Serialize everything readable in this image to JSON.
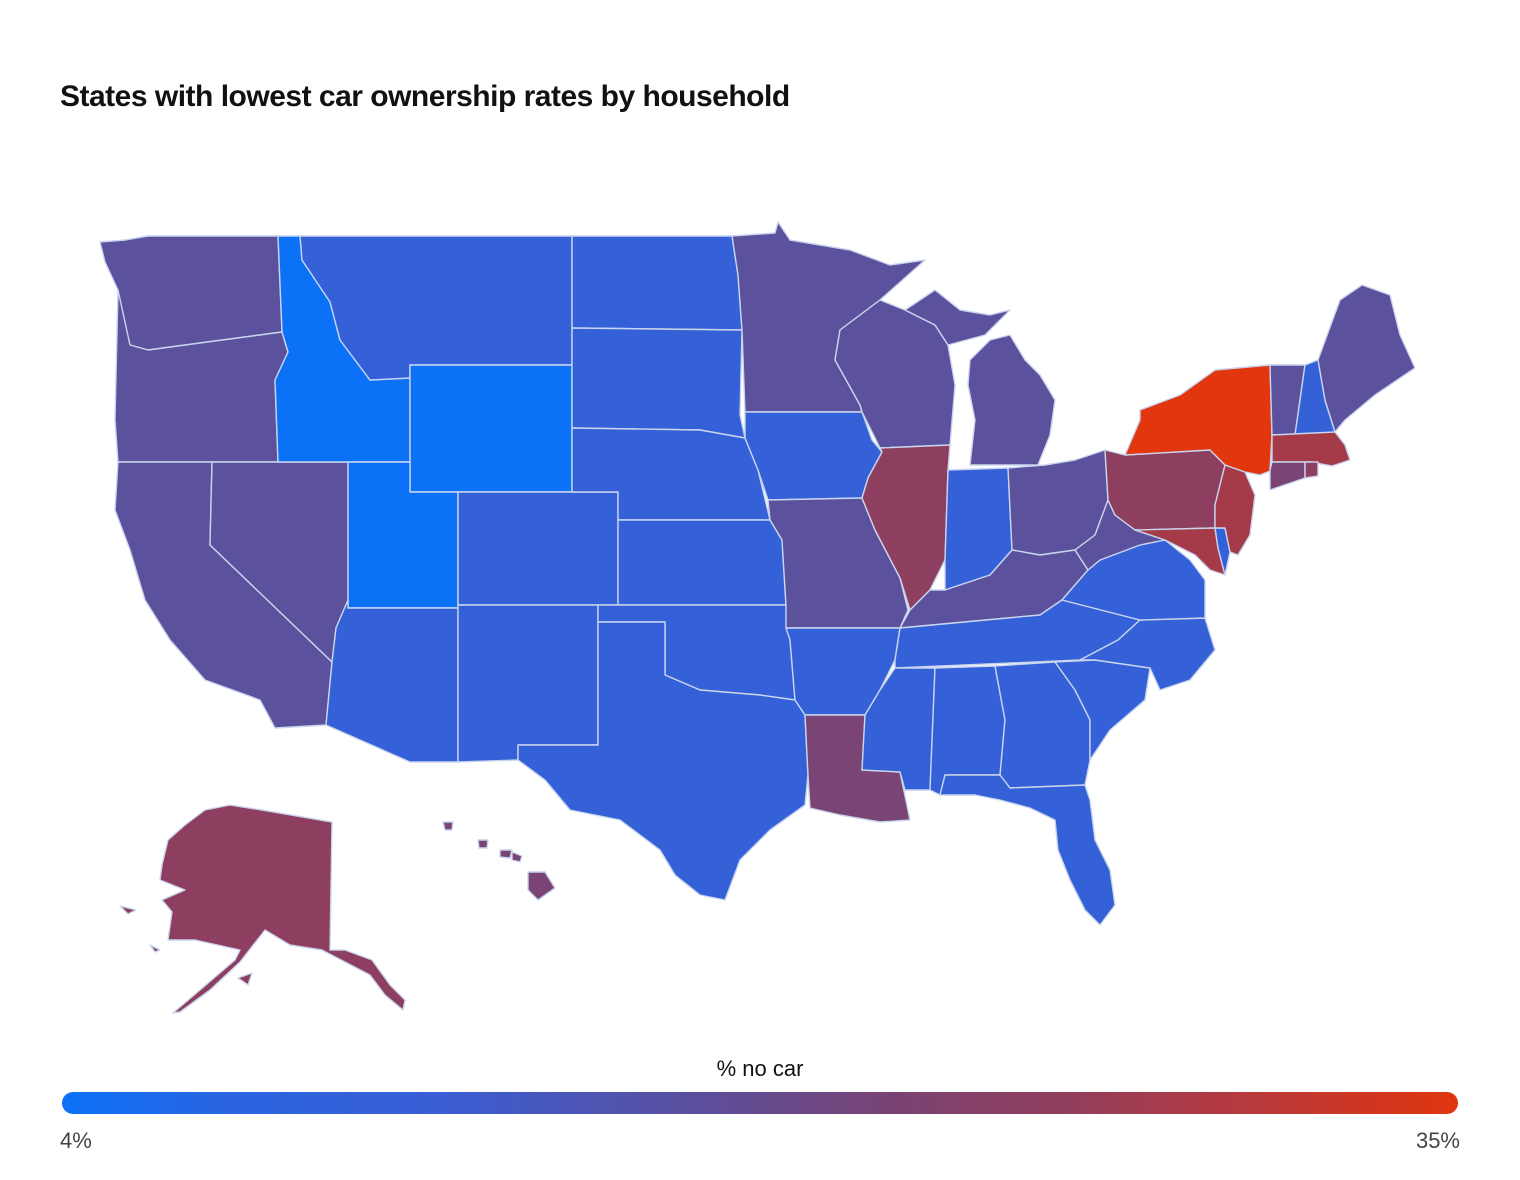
{
  "title": "States with lowest car ownership rates by household",
  "legend": {
    "title": "% no car",
    "min_label": "4%",
    "max_label": "35%",
    "min_value": 4,
    "max_value": 35,
    "color_low": "#0b72f8",
    "color_high": "#e0360f"
  },
  "palette": {
    "lowest": "#0b72f8",
    "low": "#3460d8",
    "mid_low": "#5b519c",
    "mid": "#7a4575",
    "mid_high": "#8e3e5e",
    "high": "#a53a48",
    "highest": "#e2360f",
    "border": "#c9d4ee"
  },
  "states": {
    "WA": "mid_low",
    "OR": "mid_low",
    "CA": "mid_low",
    "NV": "mid_low",
    "ID": "lowest",
    "UT": "lowest",
    "WY": "lowest",
    "MT": "low",
    "ND": "low",
    "SD": "low",
    "NE": "low",
    "CO": "low",
    "KS": "low",
    "AZ": "low",
    "NM": "low",
    "OK": "low",
    "TX": "low",
    "AR": "low",
    "IA": "low",
    "IN": "low",
    "TN": "low",
    "MS": "low",
    "AL": "low",
    "GA": "low",
    "FL": "low",
    "SC": "low",
    "NC": "low",
    "VA": "low",
    "NH": "low",
    "DE": "low",
    "MN": "mid_low",
    "WI": "mid_low",
    "MI": "mid_low",
    "MO": "mid_low",
    "OH": "mid_low",
    "KY": "mid_low",
    "WV": "mid_low",
    "ME": "mid_low",
    "VT": "mid_low",
    "LA": "mid",
    "HI": "mid",
    "CT": "mid",
    "AK": "mid_high",
    "IL": "mid_high",
    "PA": "mid_high",
    "RI": "mid_high",
    "MD": "high",
    "NJ": "high",
    "MA": "high",
    "NY": "highest"
  }
}
